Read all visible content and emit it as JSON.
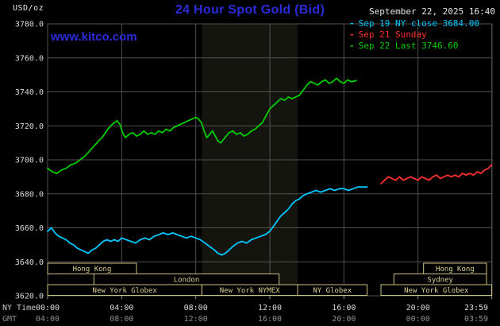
{
  "header": {
    "units_label": "USD/oz",
    "title": "24 Hour Spot Gold (Bid)",
    "datetime": "September 22, 2025 16:40",
    "website": "www.kitco.com",
    "legend": [
      {
        "label": "Sep 19 NY close 3684.00",
        "color": "#00c8ff"
      },
      {
        "label": "Sep 21 Sunday",
        "color": "#ff3030"
      },
      {
        "label": "Sep 22 Last 3746.60",
        "color": "#00cd00"
      }
    ]
  },
  "colors": {
    "title_blue": "#2b2bdb",
    "grid": "#4f4f4f",
    "tick": "#9a9a9a",
    "y_label": "#d9d9d9",
    "band": "rgba(205,205,160,0.10)",
    "session": "#cbbf7e",
    "session_label": "#dcd090",
    "background": "#000000"
  },
  "axes": {
    "x_hours": [
      0,
      4,
      8,
      12,
      16,
      20,
      23.983
    ],
    "y_ticks": [
      {
        "label": "3780.0",
        "value": 3780
      },
      {
        "label": "3760.0",
        "value": 3760
      },
      {
        "label": "3740.0",
        "value": 3740
      },
      {
        "label": "3720.0",
        "value": 3720
      },
      {
        "label": "3700.0",
        "value": 3700
      },
      {
        "label": "3680.0",
        "value": 3680
      },
      {
        "label": "3660.0",
        "value": 3660
      },
      {
        "label": "3640.0",
        "value": 3640
      },
      {
        "label": "3620.0",
        "value": 3620
      }
    ],
    "x_rows": [
      {
        "title": "NY Time",
        "color": "#d9d9d9",
        "title_color": "#c9c9c9",
        "ticks": [
          "00:00",
          "04:00",
          "08:00",
          "12:00",
          "16:00",
          "20:00",
          "23:59"
        ]
      },
      {
        "title": "GMT",
        "color": "#8f8f8f",
        "title_color": "#8f8f8f",
        "ticks": [
          "04:00",
          "08:00",
          "12:00",
          "16:00",
          "20:00",
          "00:00",
          "03:59"
        ]
      }
    ]
  },
  "sessions": [
    {
      "row": 0,
      "start": 0,
      "end": 4.8,
      "label": "Hong Kong"
    },
    {
      "row": 0,
      "start": 20.3,
      "end": 23.7,
      "label": "Hong Kong"
    },
    {
      "row": 1,
      "start": 2.5,
      "end": 12.5,
      "label": "London"
    },
    {
      "row": 1,
      "start": 18.7,
      "end": 23.7,
      "label": "Sydney"
    },
    {
      "row": 2,
      "start": 0,
      "end": 8.33,
      "label": "New York Globex"
    },
    {
      "row": 2,
      "start": 8.33,
      "end": 13.5,
      "label": "New York NYMEX"
    },
    {
      "row": 2,
      "start": 13.5,
      "end": 17.25,
      "label": "NY Globex"
    },
    {
      "row": 2,
      "start": 18,
      "end": 23.98,
      "label": "New York Globex"
    }
  ],
  "chart_data": {
    "type": "line",
    "title": "24 Hour Spot Gold (Bid)",
    "xlabel": "NY Time",
    "ylabel": "USD/oz",
    "ylim": [
      3620,
      3780
    ],
    "xlim_hours": [
      0,
      24
    ],
    "grid": true,
    "legend_position": "top-right",
    "nymex_band": {
      "hours": [
        8.333,
        13.5
      ]
    },
    "series": [
      {
        "id": "sep19-ny-close",
        "name": "Sep 19 NY close 3684.00",
        "color": "#00c8ff",
        "points": [
          [
            0,
            3658
          ],
          [
            0.2,
            3660
          ],
          [
            0.4,
            3657
          ],
          [
            0.6,
            3655
          ],
          [
            0.8,
            3654
          ],
          [
            1,
            3653
          ],
          [
            1.2,
            3651
          ],
          [
            1.4,
            3650
          ],
          [
            1.6,
            3648
          ],
          [
            1.8,
            3647
          ],
          [
            2,
            3646
          ],
          [
            2.2,
            3645
          ],
          [
            2.4,
            3647
          ],
          [
            2.6,
            3648
          ],
          [
            2.8,
            3650
          ],
          [
            3,
            3652
          ],
          [
            3.2,
            3653
          ],
          [
            3.4,
            3652
          ],
          [
            3.6,
            3653
          ],
          [
            3.8,
            3652
          ],
          [
            4,
            3654
          ],
          [
            4.25,
            3653
          ],
          [
            4.5,
            3652
          ],
          [
            4.75,
            3651
          ],
          [
            5,
            3653
          ],
          [
            5.25,
            3654
          ],
          [
            5.5,
            3653
          ],
          [
            5.75,
            3655
          ],
          [
            6,
            3656
          ],
          [
            6.25,
            3657
          ],
          [
            6.5,
            3656
          ],
          [
            6.75,
            3657
          ],
          [
            7,
            3656
          ],
          [
            7.25,
            3655
          ],
          [
            7.5,
            3654
          ],
          [
            7.75,
            3655
          ],
          [
            8,
            3654
          ],
          [
            8.25,
            3653
          ],
          [
            8.5,
            3651
          ],
          [
            8.75,
            3649
          ],
          [
            9,
            3647
          ],
          [
            9.2,
            3645
          ],
          [
            9.4,
            3644
          ],
          [
            9.6,
            3645
          ],
          [
            9.8,
            3647
          ],
          [
            10,
            3649
          ],
          [
            10.25,
            3651
          ],
          [
            10.5,
            3652
          ],
          [
            10.75,
            3651
          ],
          [
            11,
            3653
          ],
          [
            11.25,
            3654
          ],
          [
            11.5,
            3655
          ],
          [
            11.75,
            3656
          ],
          [
            12,
            3658
          ],
          [
            12.2,
            3661
          ],
          [
            12.4,
            3664
          ],
          [
            12.6,
            3667
          ],
          [
            12.8,
            3669
          ],
          [
            13,
            3671
          ],
          [
            13.2,
            3674
          ],
          [
            13.4,
            3676
          ],
          [
            13.6,
            3677
          ],
          [
            13.8,
            3679
          ],
          [
            14,
            3680
          ],
          [
            14.25,
            3681
          ],
          [
            14.5,
            3682
          ],
          [
            14.75,
            3681
          ],
          [
            15,
            3682
          ],
          [
            15.25,
            3683
          ],
          [
            15.5,
            3682
          ],
          [
            15.75,
            3683
          ],
          [
            16,
            3683
          ],
          [
            16.25,
            3682
          ],
          [
            16.5,
            3683
          ],
          [
            16.75,
            3684
          ],
          [
            17,
            3684
          ],
          [
            17.25,
            3684
          ]
        ]
      },
      {
        "id": "sep21-sunday",
        "name": "Sep 21 Sunday",
        "color": "#ff3030",
        "points": [
          [
            18,
            3686
          ],
          [
            18.2,
            3688
          ],
          [
            18.4,
            3690
          ],
          [
            18.6,
            3689
          ],
          [
            18.8,
            3688
          ],
          [
            19,
            3690
          ],
          [
            19.2,
            3688
          ],
          [
            19.4,
            3689
          ],
          [
            19.6,
            3690
          ],
          [
            19.8,
            3689
          ],
          [
            20,
            3688
          ],
          [
            20.2,
            3690
          ],
          [
            20.4,
            3689
          ],
          [
            20.6,
            3688
          ],
          [
            20.8,
            3690
          ],
          [
            21,
            3691
          ],
          [
            21.2,
            3689
          ],
          [
            21.4,
            3690
          ],
          [
            21.6,
            3691
          ],
          [
            21.8,
            3690
          ],
          [
            22,
            3691
          ],
          [
            22.2,
            3690
          ],
          [
            22.4,
            3692
          ],
          [
            22.6,
            3691
          ],
          [
            22.8,
            3692
          ],
          [
            23,
            3691
          ],
          [
            23.2,
            3693
          ],
          [
            23.4,
            3692
          ],
          [
            23.6,
            3694
          ],
          [
            23.8,
            3695
          ],
          [
            23.98,
            3697
          ]
        ]
      },
      {
        "id": "sep22-last",
        "name": "Sep 22 Last 3746.60",
        "color": "#00cd00",
        "points": [
          [
            0,
            3695
          ],
          [
            0.25,
            3693
          ],
          [
            0.5,
            3692
          ],
          [
            0.75,
            3694
          ],
          [
            1,
            3695
          ],
          [
            1.25,
            3697
          ],
          [
            1.5,
            3698
          ],
          [
            1.75,
            3700
          ],
          [
            2,
            3702
          ],
          [
            2.25,
            3705
          ],
          [
            2.5,
            3708
          ],
          [
            2.75,
            3711
          ],
          [
            3,
            3714
          ],
          [
            3.25,
            3718
          ],
          [
            3.5,
            3721
          ],
          [
            3.75,
            3723
          ],
          [
            3.9,
            3721
          ],
          [
            4.05,
            3716
          ],
          [
            4.2,
            3713
          ],
          [
            4.4,
            3715
          ],
          [
            4.6,
            3716
          ],
          [
            4.8,
            3714
          ],
          [
            5,
            3715
          ],
          [
            5.2,
            3717
          ],
          [
            5.4,
            3715
          ],
          [
            5.6,
            3716
          ],
          [
            5.8,
            3715
          ],
          [
            6,
            3717
          ],
          [
            6.2,
            3716
          ],
          [
            6.4,
            3718
          ],
          [
            6.6,
            3717
          ],
          [
            6.8,
            3719
          ],
          [
            7,
            3720
          ],
          [
            7.2,
            3721
          ],
          [
            7.4,
            3722
          ],
          [
            7.6,
            3723
          ],
          [
            7.8,
            3724
          ],
          [
            8,
            3725
          ],
          [
            8.15,
            3724
          ],
          [
            8.3,
            3722
          ],
          [
            8.45,
            3717
          ],
          [
            8.6,
            3713
          ],
          [
            8.75,
            3715
          ],
          [
            8.9,
            3717
          ],
          [
            9.05,
            3714
          ],
          [
            9.2,
            3711
          ],
          [
            9.35,
            3710
          ],
          [
            9.5,
            3712
          ],
          [
            9.65,
            3714
          ],
          [
            9.8,
            3716
          ],
          [
            10,
            3717
          ],
          [
            10.2,
            3715
          ],
          [
            10.4,
            3716
          ],
          [
            10.6,
            3714
          ],
          [
            10.8,
            3715
          ],
          [
            11,
            3717
          ],
          [
            11.2,
            3718
          ],
          [
            11.4,
            3720
          ],
          [
            11.6,
            3722
          ],
          [
            11.8,
            3726
          ],
          [
            12,
            3730
          ],
          [
            12.2,
            3732
          ],
          [
            12.4,
            3734
          ],
          [
            12.6,
            3736
          ],
          [
            12.8,
            3735
          ],
          [
            13,
            3737
          ],
          [
            13.2,
            3736
          ],
          [
            13.4,
            3737
          ],
          [
            13.6,
            3738
          ],
          [
            13.8,
            3741
          ],
          [
            14,
            3744
          ],
          [
            14.2,
            3746
          ],
          [
            14.4,
            3745
          ],
          [
            14.6,
            3744
          ],
          [
            14.8,
            3746
          ],
          [
            15,
            3747
          ],
          [
            15.2,
            3745
          ],
          [
            15.4,
            3746
          ],
          [
            15.6,
            3748
          ],
          [
            15.8,
            3746
          ],
          [
            16,
            3745
          ],
          [
            16.2,
            3747
          ],
          [
            16.4,
            3746
          ],
          [
            16.67,
            3746.6
          ]
        ]
      }
    ]
  }
}
